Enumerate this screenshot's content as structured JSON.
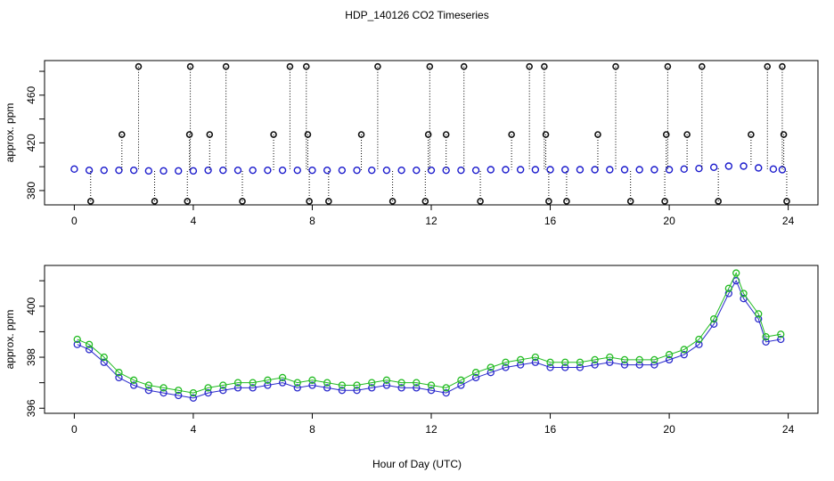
{
  "chart_data": [
    {
      "type": "scatter",
      "title": "HDP_140126  CO2 Timeseries",
      "ylabel": "approx. ppm",
      "xlim": [
        -1,
        25
      ],
      "xticks": [
        0,
        4,
        8,
        12,
        16,
        20,
        24
      ],
      "ylim": [
        368,
        489
      ],
      "yticks": [
        380,
        420,
        460
      ],
      "minor_yticks": [
        400,
        440,
        480
      ],
      "series": [
        {
          "color": "#1a1acc",
          "x": [
            0,
            0.5,
            1,
            1.5,
            2,
            2.5,
            3,
            3.5,
            4,
            4.5,
            5,
            5.5,
            6,
            6.5,
            7,
            7.5,
            8,
            8.5,
            9,
            9.5,
            10,
            10.5,
            11,
            11.5,
            12,
            12.5,
            13,
            13.5,
            14,
            14.5,
            15,
            15.5,
            16,
            16.5,
            17,
            17.5,
            18,
            18.5,
            19,
            19.5,
            20,
            20.5,
            21,
            21.5,
            22,
            22.5,
            23,
            23.5,
            23.8
          ],
          "values": [
            398,
            397,
            397,
            397,
            397,
            396.5,
            396.5,
            396.5,
            396.5,
            397,
            397,
            397,
            397,
            397,
            397,
            397,
            397,
            397,
            397,
            397,
            397,
            397,
            397,
            397,
            397,
            397,
            397,
            397,
            397.5,
            397.5,
            397.5,
            397.5,
            397.5,
            397.5,
            397.5,
            397.5,
            397.5,
            397.5,
            397.5,
            397.5,
            397.5,
            398,
            398.5,
            399.5,
            400.5,
            400.5,
            399,
            398,
            397.5
          ]
        },
        {
          "color": "#111111",
          "x": [
            2.16,
            3.9,
            5.1,
            7.25,
            7.8,
            10.2,
            11.95,
            13.1,
            15.3,
            15.8,
            18.2,
            19.95,
            21.1,
            23.3,
            23.8,
            1.6,
            3.87,
            4.55,
            6.7,
            7.85,
            9.65,
            11.9,
            12.5,
            14.7,
            15.85,
            17.6,
            19.9,
            20.6,
            22.75,
            23.85,
            0.55,
            2.7,
            3.8,
            5.65,
            7.9,
            8.55,
            10.7,
            11.8,
            13.65,
            15.95,
            16.55,
            18.7,
            19.85,
            21.65,
            23.95
          ],
          "values": [
            484,
            484,
            484,
            484,
            484,
            484,
            484,
            484,
            484,
            484,
            484,
            484,
            484,
            484,
            484,
            427,
            427,
            427,
            427,
            427,
            427,
            427,
            427,
            427,
            427,
            427,
            427,
            427,
            427,
            427,
            371,
            371,
            371,
            371,
            371,
            371,
            371,
            371,
            371,
            371,
            371,
            371,
            371,
            371,
            371
          ]
        }
      ]
    },
    {
      "type": "line",
      "ylabel": "approx. ppm",
      "xlabel": "Hour of Day (UTC)",
      "xlim": [
        -1,
        25
      ],
      "xticks": [
        0,
        4,
        8,
        12,
        16,
        20,
        24
      ],
      "ylim": [
        395.8,
        401.6
      ],
      "yticks": [
        396,
        398,
        400
      ],
      "minor_yticks": [
        397,
        399,
        401
      ],
      "x": [
        0.1,
        0.5,
        1,
        1.5,
        2,
        2.5,
        3,
        3.5,
        4,
        4.5,
        5,
        5.5,
        6,
        6.5,
        7,
        7.5,
        8,
        8.5,
        9,
        9.5,
        10,
        10.5,
        11,
        11.5,
        12,
        12.5,
        13,
        13.5,
        14,
        14.5,
        15,
        15.5,
        16,
        16.5,
        17,
        17.5,
        18,
        18.5,
        19,
        19.5,
        20,
        20.5,
        21,
        21.5,
        22,
        22.25,
        22.5,
        23,
        23.25,
        23.75
      ],
      "series": [
        {
          "color": "#2a2acc",
          "values": [
            398.5,
            398.3,
            397.8,
            397.2,
            396.9,
            396.7,
            396.6,
            396.5,
            396.4,
            396.6,
            396.7,
            396.8,
            396.8,
            396.9,
            397.0,
            396.8,
            396.9,
            396.8,
            396.7,
            396.7,
            396.8,
            396.9,
            396.8,
            396.8,
            396.7,
            396.6,
            396.9,
            397.2,
            397.4,
            397.6,
            397.7,
            397.8,
            397.6,
            397.6,
            397.6,
            397.7,
            397.8,
            397.7,
            397.7,
            397.7,
            397.9,
            398.1,
            398.5,
            399.3,
            400.5,
            401.0,
            400.3,
            399.5,
            398.6,
            398.7
          ]
        },
        {
          "color": "#22bb22",
          "values": [
            398.7,
            398.5,
            398.0,
            397.4,
            397.1,
            396.9,
            396.8,
            396.7,
            396.6,
            396.8,
            396.9,
            397.0,
            397.0,
            397.1,
            397.2,
            397.0,
            397.1,
            397.0,
            396.9,
            396.9,
            397.0,
            397.1,
            397.0,
            397.0,
            396.9,
            396.8,
            397.1,
            397.4,
            397.6,
            397.8,
            397.9,
            398.0,
            397.8,
            397.8,
            397.8,
            397.9,
            398.0,
            397.9,
            397.9,
            397.9,
            398.1,
            398.3,
            398.7,
            399.5,
            400.7,
            401.3,
            400.5,
            399.7,
            398.8,
            398.9
          ]
        }
      ]
    }
  ]
}
